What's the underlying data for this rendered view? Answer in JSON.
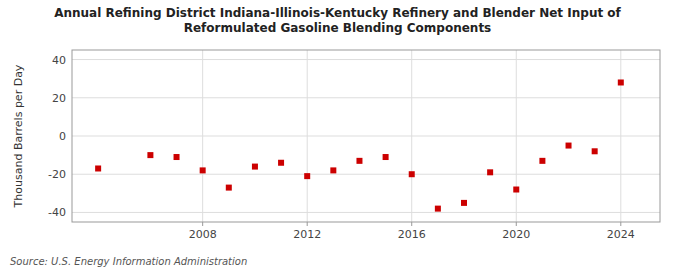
{
  "chart_data": {
    "type": "scatter",
    "title": "Annual Refining District Indiana-Illinois-Kentucky Refinery and Blender Net Input of\nReformulated Gasoline Blending Components",
    "ylabel": "Thousand Barrels per Day",
    "source": "Source: U.S. Energy Information Administration",
    "x": [
      2004,
      2006,
      2007,
      2008,
      2009,
      2010,
      2011,
      2012,
      2013,
      2014,
      2015,
      2016,
      2017,
      2018,
      2019,
      2020,
      2021,
      2022,
      2023,
      2024
    ],
    "values": [
      -17,
      -10,
      -11,
      -18,
      -27,
      -16,
      -14,
      -21,
      -18,
      -13,
      -11,
      -20,
      -38,
      -35,
      -19,
      -28,
      -13,
      -5,
      -8,
      28
    ],
    "color": "#cc0000",
    "marker": "square",
    "xlim": [
      2003,
      2025.5
    ],
    "xticks": [
      2008,
      2012,
      2016,
      2020,
      2024
    ],
    "ylim": [
      -45,
      45
    ],
    "yticks": [
      -40,
      -20,
      0,
      20,
      40
    ],
    "grid": true
  }
}
